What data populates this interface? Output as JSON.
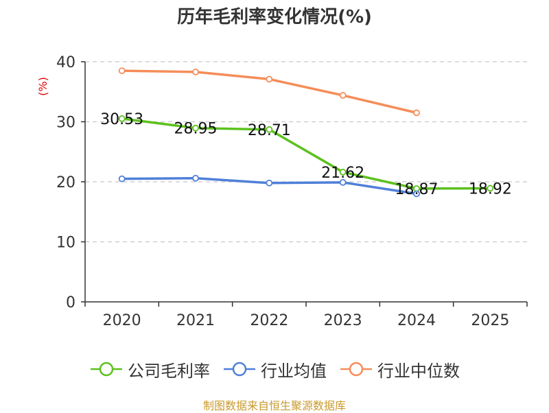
{
  "chart_data": {
    "type": "line",
    "title": "历年毛利率变化情况(%)",
    "ylabel": "(%)",
    "xlabel": "",
    "categories": [
      "2020",
      "2021",
      "2022",
      "2023",
      "2024",
      "2025"
    ],
    "ylim": [
      0,
      40
    ],
    "yticks": [
      0,
      10,
      20,
      30,
      40
    ],
    "grid": true,
    "legend_position": "bottom",
    "series": [
      {
        "name": "公司毛利率",
        "color": "#5cc11e",
        "values": [
          30.53,
          28.95,
          28.71,
          21.62,
          18.87,
          18.92
        ],
        "labels": [
          "30.53",
          "28.95",
          "28.71",
          "21.62",
          "18.87",
          "18.92"
        ]
      },
      {
        "name": "行业均值",
        "color": "#4f7fd9",
        "values": [
          20.5,
          20.6,
          19.8,
          19.9,
          18.0,
          null
        ]
      },
      {
        "name": "行业中位数",
        "color": "#f58d5a",
        "values": [
          38.5,
          38.3,
          37.1,
          34.4,
          31.5,
          null
        ]
      }
    ]
  },
  "source": "制图数据来自恒生聚源数据库"
}
